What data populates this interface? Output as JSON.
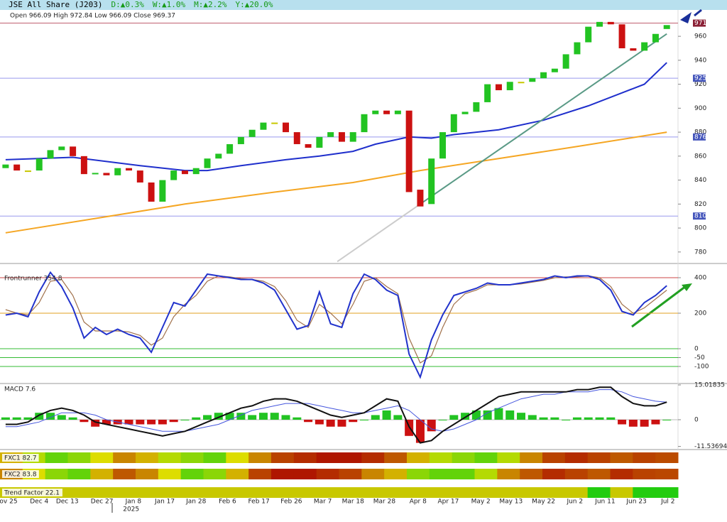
{
  "header": {
    "title": "JSE All Share (J203)",
    "changes": [
      "D:▲0.3%",
      "W:▲1.0%",
      "M:▲2.2%",
      "Y:▲20.0%"
    ]
  },
  "chart_data": [
    {
      "type": "candlestick",
      "ohlc_text": "Open 966.09 High 972.84 Low 966.09 Close 969.37",
      "x": [
        0,
        1,
        2,
        3,
        4,
        5,
        6,
        7,
        8,
        9,
        10,
        11,
        12,
        13,
        14,
        15,
        16,
        17,
        18,
        19,
        20,
        21,
        22,
        23,
        24,
        25,
        26,
        27,
        28,
        29,
        30,
        31,
        32,
        33,
        34,
        35,
        36,
        37,
        38,
        39,
        40,
        41,
        42,
        43,
        44,
        45,
        46,
        47,
        48,
        49,
        50,
        51,
        52,
        53,
        54,
        55,
        56,
        57,
        58,
        59
      ],
      "open": [
        850,
        853,
        848,
        848,
        858,
        865,
        868,
        860,
        845,
        846,
        844,
        850,
        848,
        838,
        822,
        840,
        848,
        845,
        850,
        858,
        862,
        870,
        876,
        882,
        888,
        888,
        880,
        870,
        867,
        876,
        880,
        872,
        880,
        895,
        898,
        895,
        898,
        832,
        820,
        858,
        880,
        895,
        897,
        905,
        920,
        915,
        922,
        922,
        925,
        930,
        933,
        945,
        955,
        968,
        972,
        970,
        950,
        948,
        955,
        966.09
      ],
      "close": [
        853,
        848,
        848,
        858,
        865,
        868,
        860,
        845,
        846,
        844,
        850,
        848,
        838,
        822,
        840,
        848,
        845,
        850,
        858,
        862,
        870,
        876,
        882,
        888,
        888,
        880,
        870,
        867,
        876,
        880,
        872,
        880,
        895,
        898,
        895,
        898,
        830,
        818,
        858,
        880,
        895,
        897,
        905,
        920,
        915,
        922,
        922,
        925,
        930,
        933,
        945,
        955,
        968,
        972,
        970,
        950,
        948,
        955,
        962,
        969.37
      ],
      "colors": {
        "up": "#22c322",
        "down": "#cc1111",
        "flat": "#c8c800"
      },
      "xlim": [
        -0.5,
        60
      ],
      "xticks": [
        {
          "value": 0.26,
          "label": "ov 25"
        },
        {
          "value": 3.0,
          "label": "Dec 4"
        },
        {
          "value": 5.5,
          "label": "Dec 13"
        },
        {
          "value": 8.6,
          "label": "Dec 27"
        },
        {
          "value": 11.4,
          "label": "Jan 8"
        },
        {
          "value": 14.2,
          "label": "Jan 17"
        },
        {
          "value": 17.0,
          "label": "Jan 28"
        },
        {
          "value": 19.8,
          "label": "Feb 6"
        },
        {
          "value": 22.6,
          "label": "Feb 17"
        },
        {
          "value": 25.5,
          "label": "Feb 26"
        },
        {
          "value": 28.3,
          "label": "Mar 7"
        },
        {
          "value": 31.0,
          "label": "Mar 18"
        },
        {
          "value": 33.8,
          "label": "Mar 28"
        },
        {
          "value": 36.8,
          "label": "Apr 8"
        },
        {
          "value": 39.5,
          "label": "Apr 17"
        },
        {
          "value": 42.4,
          "label": "May 2"
        },
        {
          "value": 45.1,
          "label": "May 13"
        },
        {
          "value": 48.0,
          "label": "May 22"
        },
        {
          "value": 50.8,
          "label": "Jun 2"
        },
        {
          "value": 53.5,
          "label": "Jun 11"
        },
        {
          "value": 56.3,
          "label": "Jun 23"
        },
        {
          "value": 59.1,
          "label": "Jul 2"
        }
      ],
      "year_tick": {
        "value": 11.2,
        "label": "2025"
      },
      "ylim": [
        771,
        982
      ],
      "yticks": [
        960,
        940,
        920,
        900,
        880,
        860,
        840,
        820,
        800,
        780
      ],
      "lines": [
        {
          "color": "#1f2fcc",
          "x": [
            0,
            6,
            12,
            16,
            18,
            21,
            25,
            28,
            31,
            33,
            36,
            38,
            40,
            44,
            48,
            52,
            57,
            59
          ],
          "values": [
            857,
            859,
            852,
            848,
            848,
            852,
            857,
            860,
            864,
            870,
            876,
            875,
            878,
            882,
            890,
            902,
            920,
            938
          ]
        },
        {
          "color": "#f5a623",
          "x": [
            0,
            8,
            16,
            24,
            31,
            37,
            44,
            51,
            59
          ],
          "values": [
            796,
            808,
            820,
            830,
            838,
            848,
            858,
            868,
            880
          ]
        },
        {
          "color": "#5a9a86",
          "x": [
            37,
            59
          ],
          "values": [
            820,
            962
          ]
        },
        {
          "color": "#cccccc",
          "x": [
            29.6,
            37
          ],
          "values": [
            772,
            820
          ]
        }
      ],
      "levels": [
        {
          "value": 971,
          "color": "#c06070",
          "label_bg": "#8a1f35"
        },
        {
          "value": 925,
          "color": "#9999ee",
          "label_bg": "#4455bb"
        },
        {
          "value": 876,
          "color": "#9999ee",
          "label_bg": "#4455bb"
        },
        {
          "value": 810,
          "color": "#9999ee",
          "label_bg": "#4455bb"
        }
      ]
    },
    {
      "type": "line",
      "title": "Frontrunner 354.8",
      "ylim": [
        -196,
        476
      ],
      "yticks": [
        400,
        200,
        0,
        -50,
        -100
      ],
      "levels": [
        {
          "value": 400,
          "color": "#cc4444"
        },
        {
          "value": 200,
          "color": "#e0a020"
        },
        {
          "value": 0,
          "color": "#33bb33"
        },
        {
          "value": -50,
          "color": "#33bb33"
        },
        {
          "value": -100,
          "color": "#33bb33"
        }
      ],
      "series": [
        {
          "color": "#2233cc",
          "values": [
            190,
            200,
            180,
            320,
            430,
            350,
            230,
            60,
            120,
            80,
            110,
            80,
            60,
            -20,
            120,
            260,
            240,
            330,
            420,
            410,
            400,
            390,
            390,
            370,
            330,
            220,
            110,
            130,
            320,
            140,
            120,
            310,
            420,
            390,
            330,
            300,
            -30,
            -160,
            50,
            190,
            300,
            320,
            340,
            370,
            360,
            360,
            370,
            380,
            390,
            410,
            400,
            410,
            410,
            390,
            330,
            210,
            190,
            260,
            300,
            354.8
          ]
        },
        {
          "color": "#a0704a",
          "values": [
            220,
            200,
            190,
            260,
            380,
            390,
            300,
            150,
            100,
            100,
            100,
            95,
            75,
            20,
            60,
            180,
            250,
            300,
            380,
            410,
            405,
            395,
            390,
            380,
            350,
            270,
            160,
            120,
            250,
            200,
            140,
            250,
            380,
            400,
            350,
            310,
            60,
            -80,
            -40,
            120,
            250,
            310,
            330,
            360,
            360,
            360,
            365,
            375,
            385,
            400,
            405,
            405,
            410,
            400,
            350,
            250,
            200,
            230,
            280,
            330
          ]
        }
      ]
    },
    {
      "type": "macd",
      "title": "MACD 7.6",
      "ylim": [
        -12.58,
        15.63
      ],
      "yticks": [
        15.01835,
        0,
        -11.53694
      ],
      "hist_colors": {
        "up": "#22c322",
        "down": "#cc1111"
      },
      "histogram": [
        1,
        1,
        1,
        3,
        3,
        2,
        1,
        -1,
        -3,
        -2,
        -2,
        -2,
        -2,
        -2,
        -2,
        -1,
        0,
        1,
        2,
        3,
        3,
        3,
        2,
        3,
        3,
        2,
        1,
        -1,
        -2,
        -3,
        -3,
        -1,
        0,
        2,
        4,
        2,
        -7,
        -10,
        -5,
        0,
        2,
        3,
        4,
        4,
        5,
        4,
        3,
        2,
        1,
        1,
        0,
        1,
        1,
        1,
        1,
        -2,
        -3,
        -3,
        -2,
        0
      ],
      "series": [
        {
          "color": "#111111",
          "values": [
            -2,
            -2,
            -1,
            2,
            4,
            5,
            4,
            2,
            -1,
            -2,
            -3,
            -4,
            -5,
            -6,
            -7,
            -6,
            -5,
            -3,
            -1,
            1,
            3,
            5,
            6,
            8,
            9,
            9,
            8,
            6,
            4,
            2,
            1,
            2,
            3,
            6,
            9,
            8,
            -3,
            -10,
            -9,
            -5,
            -2,
            1,
            4,
            7,
            10,
            11,
            12,
            12,
            12,
            12,
            12,
            13,
            13,
            14,
            14,
            10,
            7,
            6,
            6,
            7.6
          ]
        },
        {
          "color": "#4455dd",
          "values": [
            -3,
            -3,
            -2,
            -1,
            1,
            3,
            3,
            3,
            2,
            0,
            -1,
            -2,
            -3,
            -4,
            -5,
            -5,
            -5,
            -4,
            -3,
            -2,
            0,
            2,
            4,
            5,
            6,
            7,
            7,
            7,
            6,
            5,
            4,
            3,
            3,
            4,
            5,
            6,
            4,
            0,
            -4,
            -5,
            -4,
            -2,
            0,
            3,
            5,
            7,
            9,
            10,
            11,
            11,
            12,
            12,
            12,
            13,
            13,
            12,
            10,
            9,
            8,
            7.6
          ]
        }
      ]
    },
    {
      "type": "heatmap",
      "vlim": [
        0,
        100
      ],
      "rows": [
        {
          "name": "FXC1 82.7",
          "colors": [
            "#11cc11",
            "#dddd00",
            "#aa0000"
          ],
          "values": [
            60,
            40,
            20,
            30,
            50,
            70,
            60,
            40,
            30,
            20,
            50,
            70,
            85,
            90,
            95,
            95,
            90,
            80,
            60,
            40,
            30,
            20,
            40,
            70,
            85,
            90,
            85,
            80,
            85,
            83
          ]
        },
        {
          "name": "FXC2 83.8",
          "colors": [
            "#11cc11",
            "#dddd00",
            "#aa0000"
          ],
          "values": [
            70,
            50,
            30,
            20,
            60,
            80,
            70,
            50,
            20,
            30,
            60,
            85,
            95,
            95,
            90,
            85,
            70,
            60,
            30,
            20,
            20,
            40,
            70,
            80,
            90,
            85,
            80,
            90,
            85,
            84
          ]
        },
        {
          "name": "Trend Factor 22.1",
          "colors": [
            "#c8c800",
            "#c8c800",
            "#11cc11"
          ],
          "values": [
            20,
            20,
            20,
            20,
            20,
            20,
            20,
            20,
            20,
            20,
            20,
            20,
            20,
            20,
            20,
            20,
            20,
            20,
            20,
            20,
            20,
            20,
            20,
            20,
            20,
            20,
            95,
            20,
            95,
            95
          ]
        }
      ]
    }
  ]
}
